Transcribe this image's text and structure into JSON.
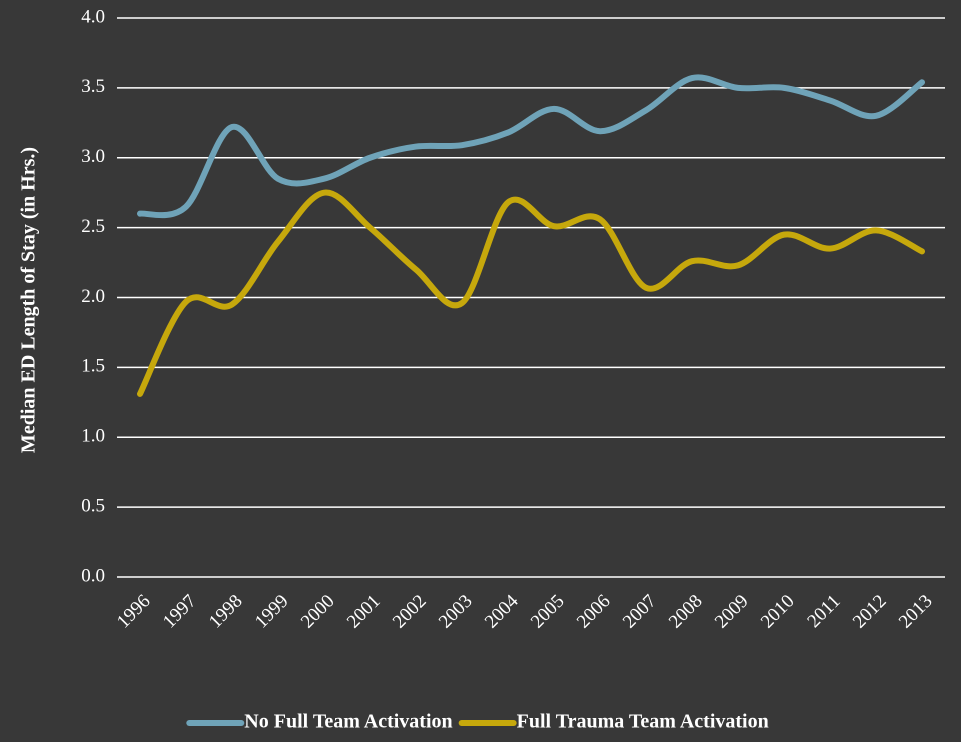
{
  "chart_data": {
    "type": "line",
    "y_label": "Median ED Length of Stay (in Hrs.)",
    "categories": [
      "1996",
      "1997",
      "1998",
      "1999",
      "2000",
      "2001",
      "2002",
      "2003",
      "2004",
      "2005",
      "2006",
      "2007",
      "2008",
      "2009",
      "2010",
      "2011",
      "2012",
      "2013"
    ],
    "series": [
      {
        "name": "No Full Team Activation",
        "color": "#6fa3b8",
        "values": [
          2.6,
          2.65,
          3.22,
          2.85,
          2.85,
          3.0,
          3.08,
          3.09,
          3.18,
          3.35,
          3.19,
          3.34,
          3.57,
          3.5,
          3.5,
          3.41,
          3.3,
          3.54
        ]
      },
      {
        "name": "Full Trauma Team Activation",
        "color": "#c6a80c",
        "values": [
          1.31,
          1.97,
          1.95,
          2.4,
          2.75,
          2.5,
          2.2,
          1.96,
          2.68,
          2.51,
          2.56,
          2.07,
          2.26,
          2.23,
          2.45,
          2.35,
          2.48,
          2.33
        ]
      }
    ],
    "ylim": [
      0,
      4
    ],
    "yticks": [
      {
        "value": 0,
        "label": "0.0"
      },
      {
        "value": 0.5,
        "label": "0.5"
      },
      {
        "value": 1,
        "label": "1.0"
      },
      {
        "value": 1.5,
        "label": "1.5"
      },
      {
        "value": 2,
        "label": "2.0"
      },
      {
        "value": 2.5,
        "label": "2.5"
      },
      {
        "value": 3,
        "label": "3.0"
      },
      {
        "value": 3.5,
        "label": "3.5"
      },
      {
        "value": 4,
        "label": "4.0"
      }
    ],
    "grid": true,
    "legend": "bottom"
  }
}
